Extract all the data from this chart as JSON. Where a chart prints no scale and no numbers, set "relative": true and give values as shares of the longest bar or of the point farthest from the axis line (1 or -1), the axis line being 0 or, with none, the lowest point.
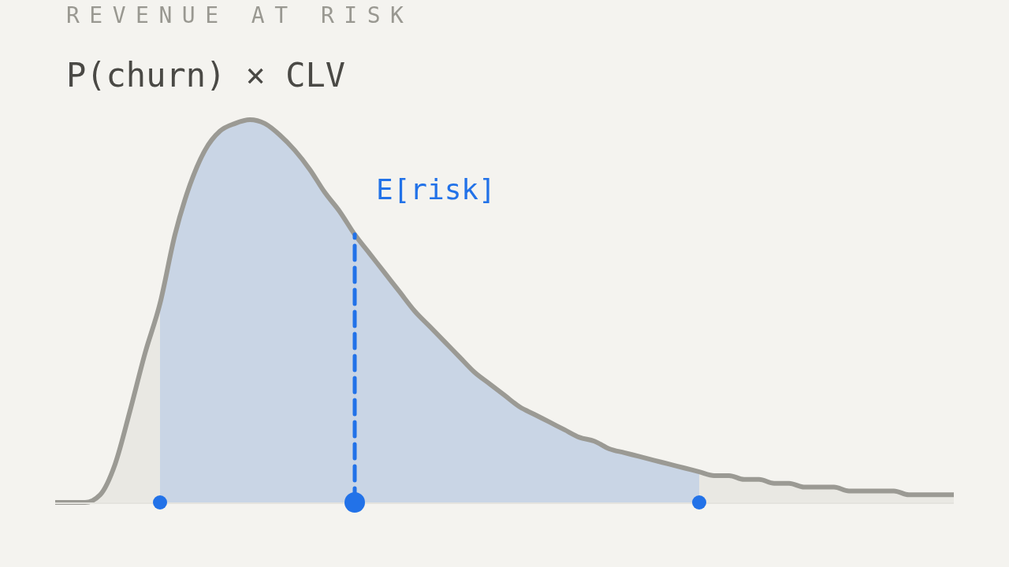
{
  "chart_data": {
    "type": "area",
    "title": "REVENUE AT RISK",
    "subtitle": "P(churn) × CLV",
    "relative": true,
    "categories": [
      null,
      null,
      null,
      null,
      null,
      null,
      null,
      null,
      null,
      null,
      null,
      null,
      null,
      null,
      null,
      null,
      null,
      null,
      null,
      null,
      null,
      null,
      null,
      null,
      null,
      null,
      null,
      null,
      null,
      null,
      null,
      null,
      null,
      null,
      null,
      null,
      null,
      null,
      null,
      null,
      null,
      null,
      null,
      null,
      null,
      null,
      null,
      null,
      null,
      null,
      null,
      null,
      null,
      null,
      null,
      null,
      null,
      null,
      null,
      null,
      null
    ],
    "series": [
      {
        "type": "area",
        "color": "#9b9a94",
        "values": [
          0,
          0,
          0,
          0.02,
          0.1,
          0.24,
          0.39,
          0.52,
          0.7,
          0.83,
          0.92,
          0.97,
          0.99,
          1,
          0.99,
          0.96,
          0.92,
          0.87,
          0.81,
          0.76,
          0.7,
          0.65,
          0.6,
          0.55,
          0.5,
          0.46,
          0.42,
          0.38,
          0.34,
          0.31,
          0.28,
          0.25,
          0.23,
          0.21,
          0.19,
          0.17,
          0.16,
          0.14,
          0.13,
          0.12,
          0.11,
          0.1,
          0.09,
          0.08,
          0.07,
          0.07,
          0.06,
          0.06,
          0.05,
          0.05,
          0.04,
          0.04,
          0.04,
          0.03,
          0.03,
          0.03,
          0.03,
          0.02,
          0.02,
          0.02,
          0.02
        ]
      },
      {
        "type": "area",
        "color": "#c9d5e5",
        "values": [
          null,
          null,
          null,
          null,
          null,
          null,
          null,
          0.52,
          0.7,
          0.83,
          0.92,
          0.97,
          0.99,
          1,
          0.99,
          0.96,
          0.92,
          0.87,
          0.81,
          0.76,
          0.7,
          0.65,
          0.6,
          0.55,
          0.5,
          0.46,
          0.42,
          0.38,
          0.34,
          0.31,
          0.28,
          0.25,
          0.23,
          0.21,
          0.19,
          0.17,
          0.16,
          0.14,
          0.13,
          0.12,
          0.11,
          0.1,
          0.09,
          0.08,
          null,
          null,
          null,
          null,
          null,
          null,
          null,
          null,
          null,
          null,
          null,
          null,
          null,
          null,
          null,
          null,
          null
        ]
      }
    ],
    "annotations": [
      "E[risk]"
    ]
  }
}
